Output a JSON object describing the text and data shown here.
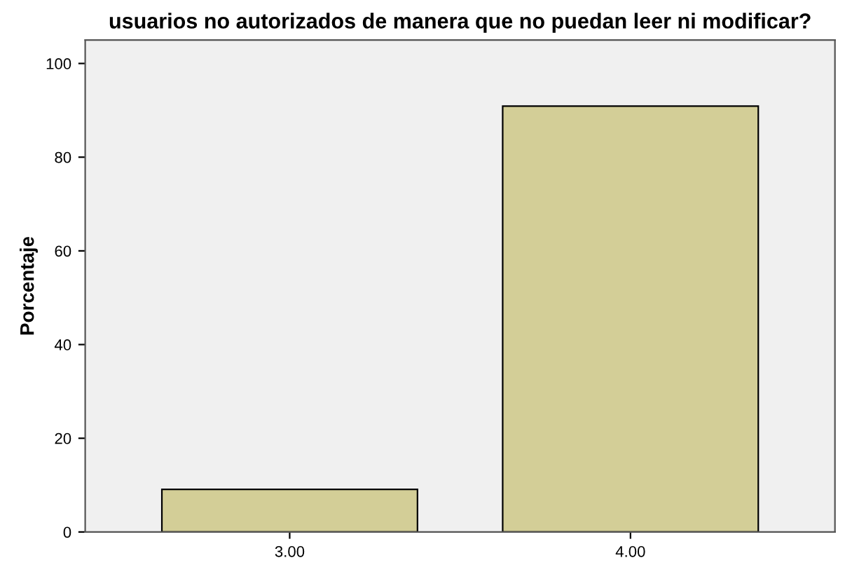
{
  "chart_data": {
    "type": "bar",
    "title": "usuarios no autorizados de manera que no puedan leer ni modificar?",
    "ylabel": "Porcentaje",
    "categories": [
      "3.00",
      "4.00"
    ],
    "values": [
      9.1,
      90.9
    ],
    "color": "#d3ce97",
    "ylim": [
      0,
      105
    ],
    "yticks": [
      0,
      20,
      40,
      60,
      80,
      100
    ],
    "grid": false
  }
}
